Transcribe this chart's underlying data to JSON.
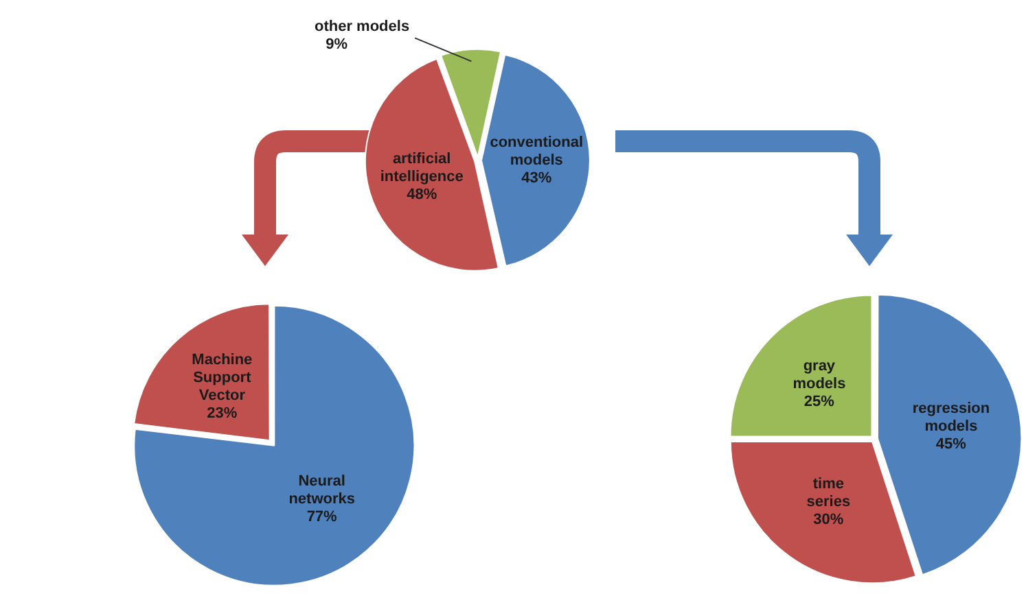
{
  "chart_data": [
    {
      "type": "pie",
      "categories": [
        "other models",
        "conventional models",
        "artificial intelligence"
      ],
      "values": [
        9,
        43,
        48
      ],
      "colors": [
        "#9bbb59",
        "#4f81bd",
        "#c0504d"
      ],
      "value_labels": [
        "9%",
        "43%",
        "48%"
      ]
    },
    {
      "type": "pie",
      "categories": [
        "Machine Support Vector",
        "Neural networks"
      ],
      "values": [
        23,
        77
      ],
      "colors": [
        "#c0504d",
        "#4f81bd"
      ],
      "value_labels": [
        "23%",
        "77%"
      ]
    },
    {
      "type": "pie",
      "categories": [
        "regression models",
        "time series",
        "gray models"
      ],
      "values": [
        45,
        30,
        25
      ],
      "colors": [
        "#4f81bd",
        "#c0504d",
        "#9bbb59"
      ],
      "value_labels": [
        "45%",
        "30%",
        "25%"
      ]
    }
  ]
}
